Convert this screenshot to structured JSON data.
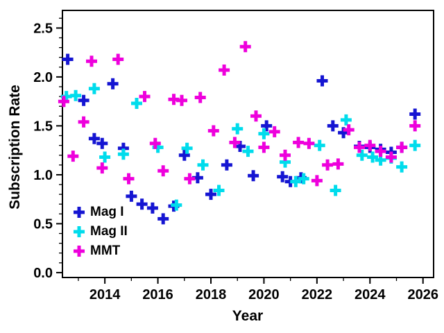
{
  "figure": {
    "background": "#ffffff",
    "axis_color": "#000000"
  },
  "chart_data": {
    "type": "scatter",
    "title": "",
    "xlabel": "Year",
    "ylabel": "Subscription Rate",
    "xlim": [
      2012.4,
      2026.4
    ],
    "ylim": [
      -0.05,
      2.68
    ],
    "xticks": [
      2014,
      2016,
      2018,
      2020,
      2022,
      2024,
      2026
    ],
    "xtick_labels": [
      "2014",
      "2016",
      "2018",
      "2020",
      "2022",
      "2024",
      "2026"
    ],
    "yticks": [
      0.0,
      0.5,
      1.0,
      1.5,
      2.0,
      2.5
    ],
    "ytick_labels": [
      "0.0",
      "0.5",
      "1.0",
      "1.5",
      "2.0",
      "2.5"
    ],
    "x_minor_step": 1,
    "y_minor_step": 0.1,
    "grid": false,
    "marker": "plus",
    "legend_position": "lower-left",
    "series": [
      {
        "name": "Mag I",
        "color": "#1515d2",
        "points": [
          [
            2012.6,
            2.18
          ],
          [
            2013.2,
            1.76
          ],
          [
            2013.6,
            1.37
          ],
          [
            2013.9,
            1.32
          ],
          [
            2014.3,
            1.93
          ],
          [
            2014.7,
            1.27
          ],
          [
            2015.0,
            0.78
          ],
          [
            2015.4,
            0.7
          ],
          [
            2015.8,
            0.66
          ],
          [
            2016.2,
            0.55
          ],
          [
            2016.6,
            0.68
          ],
          [
            2017.0,
            1.2
          ],
          [
            2017.5,
            0.97
          ],
          [
            2018.0,
            0.8
          ],
          [
            2018.6,
            1.1
          ],
          [
            2019.1,
            1.29
          ],
          [
            2019.6,
            0.99
          ],
          [
            2020.1,
            1.5
          ],
          [
            2020.7,
            0.98
          ],
          [
            2021.0,
            0.93
          ],
          [
            2021.4,
            0.97
          ],
          [
            2022.2,
            1.96
          ],
          [
            2022.6,
            1.5
          ],
          [
            2023.0,
            1.43
          ],
          [
            2023.6,
            1.29
          ],
          [
            2024.0,
            1.28
          ],
          [
            2024.4,
            1.26
          ],
          [
            2024.8,
            1.23
          ],
          [
            2025.2,
            1.28
          ],
          [
            2025.7,
            1.62
          ]
        ]
      },
      {
        "name": "Mag II",
        "color": "#00dcec",
        "points": [
          [
            2012.55,
            1.8
          ],
          [
            2012.9,
            1.81
          ],
          [
            2013.6,
            1.88
          ],
          [
            2014.0,
            1.18
          ],
          [
            2014.7,
            1.21
          ],
          [
            2015.2,
            1.73
          ],
          [
            2016.0,
            1.28
          ],
          [
            2016.7,
            0.69
          ],
          [
            2017.1,
            1.27
          ],
          [
            2017.7,
            1.1
          ],
          [
            2018.3,
            0.84
          ],
          [
            2019.0,
            1.47
          ],
          [
            2019.4,
            1.24
          ],
          [
            2020.0,
            1.42
          ],
          [
            2020.8,
            1.13
          ],
          [
            2021.2,
            0.93
          ],
          [
            2021.5,
            0.96
          ],
          [
            2022.1,
            1.3
          ],
          [
            2022.7,
            0.84
          ],
          [
            2023.1,
            1.56
          ],
          [
            2023.7,
            1.2
          ],
          [
            2024.1,
            1.18
          ],
          [
            2024.4,
            1.15
          ],
          [
            2024.8,
            1.17
          ],
          [
            2025.2,
            1.08
          ],
          [
            2025.7,
            1.3
          ]
        ]
      },
      {
        "name": "MMT",
        "color": "#ee00dc",
        "points": [
          [
            2012.45,
            1.75
          ],
          [
            2012.8,
            1.19
          ],
          [
            2013.2,
            1.54
          ],
          [
            2013.5,
            2.16
          ],
          [
            2013.9,
            1.07
          ],
          [
            2014.5,
            2.18
          ],
          [
            2014.9,
            0.96
          ],
          [
            2015.5,
            1.8
          ],
          [
            2015.9,
            1.32
          ],
          [
            2016.2,
            1.04
          ],
          [
            2016.6,
            1.77
          ],
          [
            2016.9,
            1.76
          ],
          [
            2017.2,
            0.96
          ],
          [
            2017.6,
            1.79
          ],
          [
            2018.1,
            1.45
          ],
          [
            2018.5,
            2.07
          ],
          [
            2018.9,
            1.33
          ],
          [
            2019.3,
            2.31
          ],
          [
            2019.7,
            1.6
          ],
          [
            2020.0,
            1.28
          ],
          [
            2020.4,
            1.44
          ],
          [
            2020.8,
            1.2
          ],
          [
            2021.3,
            1.33
          ],
          [
            2021.7,
            1.32
          ],
          [
            2022.0,
            0.94
          ],
          [
            2022.4,
            1.1
          ],
          [
            2022.8,
            1.11
          ],
          [
            2023.2,
            1.46
          ],
          [
            2023.6,
            1.28
          ],
          [
            2024.0,
            1.3
          ],
          [
            2024.4,
            1.24
          ],
          [
            2024.8,
            1.18
          ],
          [
            2025.2,
            1.28
          ],
          [
            2025.7,
            1.5
          ]
        ]
      }
    ]
  }
}
